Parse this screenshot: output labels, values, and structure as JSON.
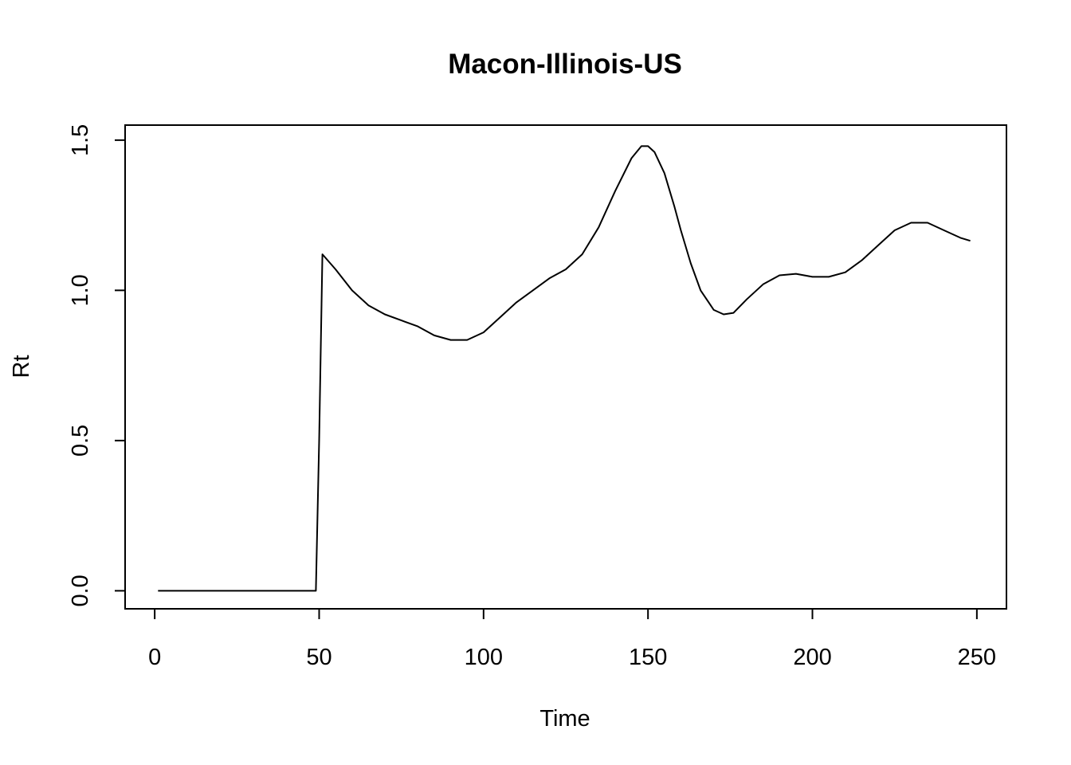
{
  "chart_data": {
    "type": "line",
    "title": "Macon-Illinois-US",
    "xlabel": "Time",
    "ylabel": "Rt",
    "xlim": [
      -9,
      259
    ],
    "ylim": [
      -0.06,
      1.55
    ],
    "x_ticks": [
      0,
      50,
      100,
      150,
      200,
      250
    ],
    "y_ticks": [
      0.0,
      0.5,
      1.0,
      1.5
    ],
    "x_tick_labels": [
      "0",
      "50",
      "100",
      "150",
      "200",
      "250"
    ],
    "y_tick_labels": [
      "0.0",
      "0.5",
      "1.0",
      "1.5"
    ],
    "grid": false,
    "legend": "none",
    "line_color": "#000000",
    "series": [
      {
        "x": [
          1,
          10,
          20,
          30,
          40,
          49,
          50,
          51,
          55,
          60,
          65,
          70,
          75,
          80,
          85,
          90,
          95,
          100,
          105,
          110,
          115,
          120,
          125,
          130,
          135,
          140,
          145,
          148,
          150,
          152,
          155,
          158,
          160,
          163,
          166,
          170,
          173,
          176,
          180,
          185,
          190,
          195,
          200,
          205,
          210,
          215,
          220,
          225,
          230,
          235,
          240,
          245,
          248
        ],
        "y": [
          0,
          0,
          0,
          0,
          0,
          0,
          0.5,
          1.12,
          1.07,
          1.0,
          0.95,
          0.92,
          0.9,
          0.88,
          0.85,
          0.835,
          0.835,
          0.86,
          0.91,
          0.96,
          1.0,
          1.04,
          1.07,
          1.12,
          1.21,
          1.33,
          1.44,
          1.48,
          1.48,
          1.46,
          1.39,
          1.28,
          1.2,
          1.09,
          1.0,
          0.935,
          0.92,
          0.925,
          0.97,
          1.02,
          1.05,
          1.055,
          1.045,
          1.045,
          1.06,
          1.1,
          1.15,
          1.2,
          1.225,
          1.225,
          1.2,
          1.175,
          1.165
        ]
      }
    ]
  }
}
